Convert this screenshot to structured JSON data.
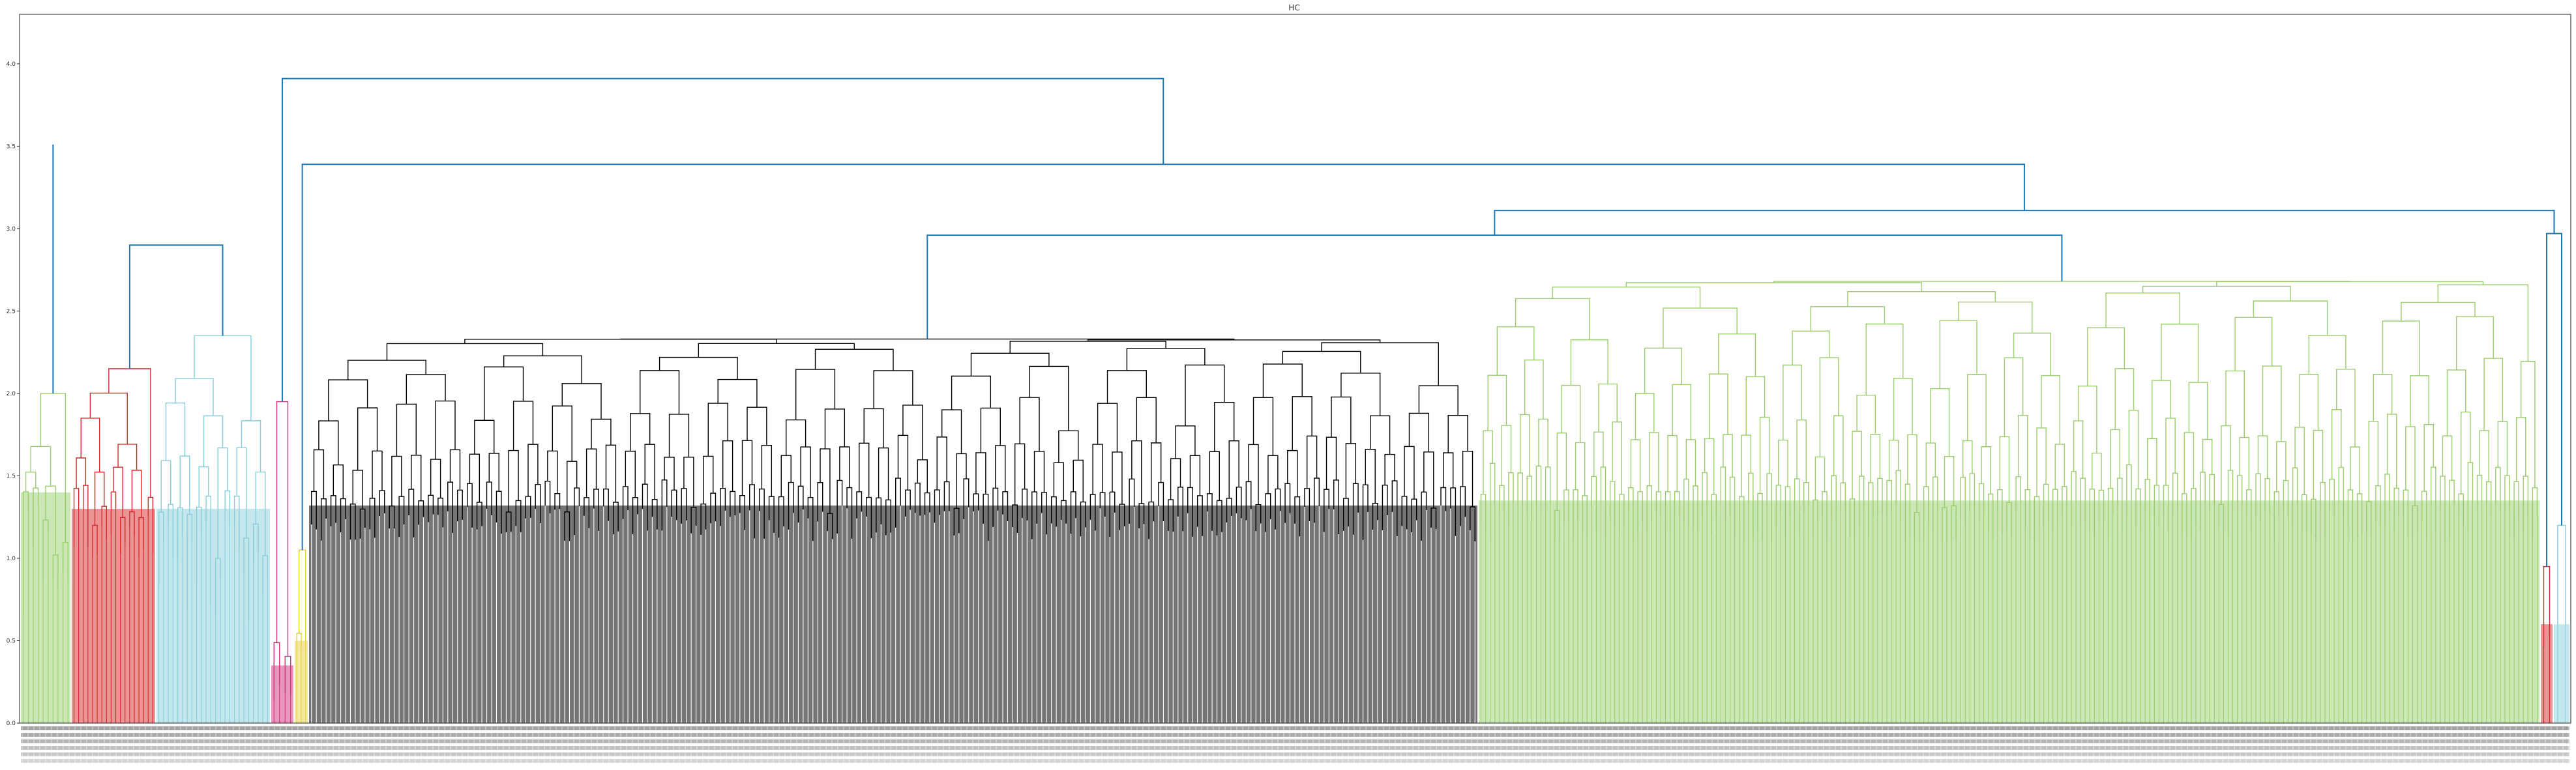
{
  "chart_data": {
    "type": "dendrogram",
    "title": "HC",
    "xlabel": "",
    "ylabel": "",
    "ylim": [
      0,
      4.3
    ],
    "y_ticks": [
      0.0,
      0.5,
      1.0,
      1.5,
      2.0,
      2.5,
      3.0,
      3.5,
      4.0
    ],
    "y_tick_labels": [
      "0.0",
      "0.5",
      "1.0",
      "1.5",
      "2.0",
      "2.5",
      "3.0",
      "3.5",
      "4.0"
    ],
    "leaf_label_band": "dense, illegible leaf labels beneath every leaf",
    "above_threshold_color": "#1f77b4",
    "clusters": [
      {
        "id": "c1",
        "color": "#9acd6b",
        "leaves": 10,
        "merge_height": 2.0,
        "leaf_top_range": [
          0.55,
          1.4
        ]
      },
      {
        "id": "c2",
        "color": "#d62728",
        "leaves": 18,
        "merge_height": 2.15,
        "leaf_top_range": [
          1.0,
          1.3
        ]
      },
      {
        "id": "c3",
        "color": "#87cedb",
        "leaves": 24,
        "merge_height": 2.35,
        "leaf_top_range": [
          0.6,
          1.3
        ]
      },
      {
        "id": "c4",
        "color": "#d0307a",
        "leaves": 4,
        "merge_height": 1.95,
        "leaf_top_range": [
          0.1,
          0.35
        ]
      },
      {
        "id": "c5",
        "color": "#e8d23b",
        "leaves": 3,
        "merge_height": 1.05,
        "leaf_top_range": [
          0.2,
          0.5
        ]
      },
      {
        "id": "c6",
        "color": "#000000",
        "leaves": 240,
        "merge_height": 2.33,
        "leaf_top_range": [
          1.1,
          1.32
        ]
      },
      {
        "id": "c7",
        "color": "#9acd6b",
        "leaves": 230,
        "merge_height": 2.68,
        "leaf_top_range": [
          1.1,
          1.35
        ]
      },
      {
        "id": "c8",
        "color": "#d62728",
        "leaves": 2,
        "merge_height": 0.95,
        "leaf_top_range": [
          0.45,
          0.6
        ]
      },
      {
        "id": "c9",
        "color": "#87cedb",
        "leaves": 2,
        "merge_height": 1.2,
        "leaf_top_range": [
          0.5,
          0.6
        ]
      }
    ],
    "upper_merges": [
      {
        "id": "u1",
        "left": "c1",
        "right": "u2",
        "height": 3.51
      },
      {
        "id": "u2",
        "left": "c2",
        "right": "c3",
        "height": 2.9
      },
      {
        "id": "u3",
        "left": "c6",
        "right": "c7",
        "height": 2.96
      },
      {
        "id": "u4",
        "left": "c8",
        "right": "c9",
        "height": 2.97
      },
      {
        "id": "u5",
        "left": "u3",
        "right": "u4",
        "height": 3.11
      },
      {
        "id": "u6",
        "left": "c5",
        "right": "u5",
        "height": 3.39
      },
      {
        "id": "u7",
        "left": "c4",
        "right": "u6",
        "height": 3.91
      },
      {
        "id": "u8",
        "left": "u1",
        "right": "u7",
        "height": 4.1
      }
    ]
  }
}
